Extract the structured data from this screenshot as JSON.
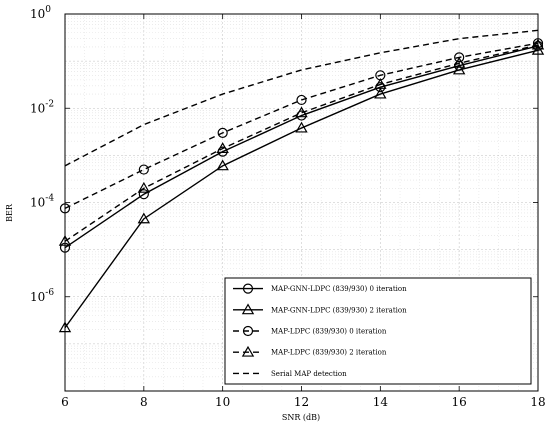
{
  "chart_data": {
    "type": "line",
    "title": "",
    "xlabel": "SNR (dB)",
    "ylabel": "BER",
    "xlim": [
      6,
      18
    ],
    "ylim": [
      1e-08,
      1
    ],
    "yscale": "log",
    "grid": true,
    "legend_position": "bottom-right",
    "x_ticks": [
      "6",
      "8",
      "10",
      "12",
      "14",
      "16",
      "18"
    ],
    "y_ticks": [
      {
        "base": "10",
        "exp": "0",
        "value": 1
      },
      {
        "base": "10",
        "exp": "-2",
        "value": 0.01
      },
      {
        "base": "10",
        "exp": "-4",
        "value": 0.0001
      },
      {
        "base": "10",
        "exp": "-6",
        "value": 1e-06
      }
    ],
    "series": [
      {
        "name": "MAP-GNN-LDPC (839/930) 0 iteration",
        "marker": "circle",
        "dash": "solid",
        "x": [
          6,
          8,
          10,
          12,
          14,
          16,
          18
        ],
        "y": [
          1.1e-05,
          0.00015,
          0.0012,
          0.007,
          0.028,
          0.08,
          0.21
        ]
      },
      {
        "name": "MAP-GNN-LDPC (839/930) 2 iteration",
        "marker": "triangle",
        "dash": "solid",
        "x": [
          6,
          8,
          10,
          12,
          14,
          16,
          18
        ],
        "y": [
          2.2e-07,
          4.5e-05,
          0.0006,
          0.0038,
          0.02,
          0.065,
          0.17
        ]
      },
      {
        "name": "MAP-LDPC (839/930) 0 iteration",
        "marker": "circle",
        "dash": "dashed",
        "x": [
          6,
          8,
          10,
          12,
          14,
          16,
          18
        ],
        "y": [
          7.5e-05,
          0.0005,
          0.003,
          0.015,
          0.05,
          0.12,
          0.24
        ]
      },
      {
        "name": "MAP-LDPC (839/930) 2 iteration",
        "marker": "triangle",
        "dash": "dashed",
        "x": [
          6,
          8,
          10,
          12,
          14,
          16,
          18
        ],
        "y": [
          1.5e-05,
          0.0002,
          0.0014,
          0.008,
          0.032,
          0.09,
          0.22
        ]
      },
      {
        "name": "Serial MAP detection",
        "marker": "none",
        "dash": "dashed",
        "x": [
          6,
          8,
          10,
          12,
          14,
          16,
          18
        ],
        "y": [
          0.0006,
          0.0045,
          0.02,
          0.065,
          0.15,
          0.3,
          0.45
        ]
      }
    ]
  }
}
